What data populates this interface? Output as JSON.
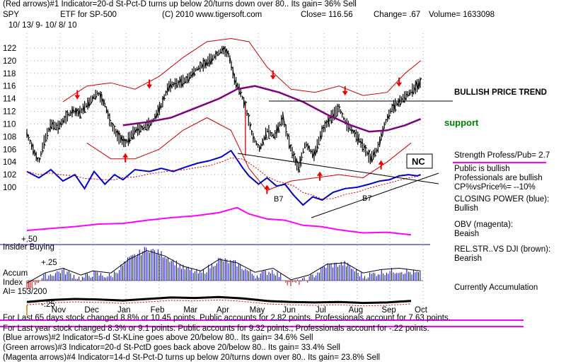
{
  "header": {
    "line1": "(Red arrows)#1 Indicator=20-d St-Pct-D turns up below 20/turns down over 80.. Its gain= 36% Sell",
    "symbol": "SPY",
    "etf": "ETF for SP-500",
    "copyright": "(C) 2010 www.tigersoft.com",
    "close": "Close=  116.56",
    "change": "Change= .67",
    "volume": "Volume= 1633098",
    "date_range": "10/ 13/ 9- 10/ 8/ 10"
  },
  "right_panel": {
    "bullish_trend": "BULLISH PRICE TREND",
    "support": "support",
    "nc": "NC",
    "strength": "Strength Profess/Pub= 2.7",
    "public_bullish": "Public is bullish",
    "pros_bullish": "Professionals are bullish",
    "cp_vs_price": "CP%vsPrice%= --10%",
    "closing_power_label": "CLOSING POWER (blue):",
    "closing_power_value": "Bullish",
    "obv_label": "OBV (magenta):",
    "obv_value": "Beaish",
    "relstr_label": "REL.STR..VS DJI (brown):",
    "relstr_value": "Bearish",
    "accumulation": "Currently Accumulation"
  },
  "lower_panel": {
    "insider_buying": "Insider Buying",
    "plus50": "+.50",
    "plus25": "+.25",
    "accum": "Accum",
    "index": "Index",
    "ai": "AI= 153/200",
    "minus25": "-.25"
  },
  "annotations": {
    "b7_left": "B7",
    "b7_right": "B7"
  },
  "footer": {
    "line1": "For Last 65 days stock changed  8.8% or  10.45 points.  Public accounts for  2.82 points.  Professionals account for  7.63 points.",
    "line2": "For Last year stock changed  8.3% or  9.1 points:  Public accounts for  9.32 points.;  Professionals account for -.22 points.",
    "line3": "(Blue arrows)#2 Indicator=5-d St-KLine goes above 20/below 80.. Its gain= 34.6% Sell",
    "line4": "(Green arrows)#3 Indicator=20-d St-PctD goes back above 20/below 80.. Its gain= 33.4% Sell",
    "line5": "(Magenta arrows)#4 Indicator=14-d St-Pct-D turns up below 20/turns down over 80.. Its gain= 23.8% Sell"
  },
  "colors": {
    "price_bars": "#000000",
    "bands": "#cc0000",
    "moving_average": "#800080",
    "closing_power": "#0000cc",
    "obv": "#ff00ff",
    "relative_strength": "#8b4513",
    "support": "#008000",
    "accum_bars": "#0000cc",
    "accum_negative": "#cc0000"
  },
  "chart_data": {
    "type": "line",
    "ticker": "SPY",
    "y_ticks": [
      100,
      102,
      104,
      106,
      108,
      110,
      112,
      114,
      116,
      118,
      120,
      122
    ],
    "ylim": [
      99,
      123
    ],
    "months": [
      "Nov",
      "Dec",
      "Jan",
      "Feb",
      "Mar",
      "Apr",
      "May",
      "Jun",
      "Jul",
      "Aug",
      "Sep",
      "Oct"
    ],
    "price_series": [
      {
        "t": 0,
        "v": 108.5
      },
      {
        "t": 0.5,
        "v": 106
      },
      {
        "t": 1.0,
        "v": 104
      },
      {
        "t": 1.4,
        "v": 107
      },
      {
        "t": 2.0,
        "v": 110
      },
      {
        "t": 2.6,
        "v": 109.5
      },
      {
        "t": 3.2,
        "v": 111
      },
      {
        "t": 3.8,
        "v": 112
      },
      {
        "t": 4.4,
        "v": 111.8
      },
      {
        "t": 5.2,
        "v": 113.5
      },
      {
        "t": 5.9,
        "v": 115
      },
      {
        "t": 6.5,
        "v": 113
      },
      {
        "t": 7.0,
        "v": 110
      },
      {
        "t": 7.6,
        "v": 108
      },
      {
        "t": 8.2,
        "v": 107
      },
      {
        "t": 9.0,
        "v": 109
      },
      {
        "t": 9.8,
        "v": 109.5
      },
      {
        "t": 10.5,
        "v": 110.5
      },
      {
        "t": 11.2,
        "v": 113
      },
      {
        "t": 11.8,
        "v": 116
      },
      {
        "t": 12.6,
        "v": 116.5
      },
      {
        "t": 13.3,
        "v": 117
      },
      {
        "t": 14.0,
        "v": 118.5
      },
      {
        "t": 14.8,
        "v": 119.5
      },
      {
        "t": 15.5,
        "v": 120.5
      },
      {
        "t": 16.3,
        "v": 121.8
      },
      {
        "t": 16.8,
        "v": 121
      },
      {
        "t": 17.3,
        "v": 117
      },
      {
        "t": 17.8,
        "v": 115
      },
      {
        "t": 18.3,
        "v": 112
      },
      {
        "t": 18.8,
        "v": 108
      },
      {
        "t": 19.4,
        "v": 106
      },
      {
        "t": 20.0,
        "v": 109
      },
      {
        "t": 20.6,
        "v": 108
      },
      {
        "t": 21.3,
        "v": 111
      },
      {
        "t": 22.0,
        "v": 106
      },
      {
        "t": 22.6,
        "v": 103
      },
      {
        "t": 23.2,
        "v": 107
      },
      {
        "t": 23.9,
        "v": 105
      },
      {
        "t": 24.6,
        "v": 109
      },
      {
        "t": 25.3,
        "v": 111
      },
      {
        "t": 26.0,
        "v": 112.5
      },
      {
        "t": 26.6,
        "v": 110
      },
      {
        "t": 27.3,
        "v": 108.5
      },
      {
        "t": 28.0,
        "v": 106.5
      },
      {
        "t": 28.6,
        "v": 104.5
      },
      {
        "t": 29.2,
        "v": 106
      },
      {
        "t": 29.8,
        "v": 110
      },
      {
        "t": 30.4,
        "v": 112.5
      },
      {
        "t": 31.0,
        "v": 113.5
      },
      {
        "t": 31.6,
        "v": 114.5
      },
      {
        "t": 32.2,
        "v": 115.5
      },
      {
        "t": 32.8,
        "v": 116.6
      }
    ],
    "closing_power_series": [
      {
        "t": 0,
        "v": 102.5
      },
      {
        "t": 1.0,
        "v": 101.5
      },
      {
        "t": 2.0,
        "v": 102.8
      },
      {
        "t": 3.0,
        "v": 101
      },
      {
        "t": 4.0,
        "v": 102
      },
      {
        "t": 4.8,
        "v": 99.8
      },
      {
        "t": 5.6,
        "v": 102.5
      },
      {
        "t": 6.5,
        "v": 100.5
      },
      {
        "t": 7.3,
        "v": 102
      },
      {
        "t": 8.0,
        "v": 101.2
      },
      {
        "t": 9.0,
        "v": 102.8
      },
      {
        "t": 10.2,
        "v": 102.5
      },
      {
        "t": 11.2,
        "v": 103
      },
      {
        "t": 12.2,
        "v": 102.5
      },
      {
        "t": 13.2,
        "v": 103.2
      },
      {
        "t": 14.2,
        "v": 103.8
      },
      {
        "t": 15.2,
        "v": 104.2
      },
      {
        "t": 16.2,
        "v": 104.8
      },
      {
        "t": 17.0,
        "v": 105.8
      },
      {
        "t": 18.0,
        "v": 103
      },
      {
        "t": 18.5,
        "v": 101.8
      },
      {
        "t": 19.3,
        "v": 100.5
      },
      {
        "t": 20.0,
        "v": 101.5
      },
      {
        "t": 20.8,
        "v": 100.2
      },
      {
        "t": 21.5,
        "v": 100.5
      },
      {
        "t": 22.2,
        "v": 98.8
      },
      {
        "t": 23.0,
        "v": 97.2
      },
      {
        "t": 23.8,
        "v": 98.5
      },
      {
        "t": 24.6,
        "v": 98
      },
      {
        "t": 25.5,
        "v": 99.2
      },
      {
        "t": 26.5,
        "v": 99.8
      },
      {
        "t": 27.5,
        "v": 100
      },
      {
        "t": 28.5,
        "v": 100.5
      },
      {
        "t": 29.4,
        "v": 101
      },
      {
        "t": 30.2,
        "v": 101.2
      },
      {
        "t": 31.0,
        "v": 101.8
      },
      {
        "t": 31.8,
        "v": 102
      },
      {
        "t": 32.5,
        "v": 101.8
      },
      {
        "t": 32.8,
        "v": 102
      }
    ],
    "moving_average_series": [
      {
        "t": 8.0,
        "v": 109.8
      },
      {
        "t": 10.0,
        "v": 110.3
      },
      {
        "t": 12.0,
        "v": 111
      },
      {
        "t": 14.0,
        "v": 112.5
      },
      {
        "t": 16.0,
        "v": 114
      },
      {
        "t": 17.5,
        "v": 115.5
      },
      {
        "t": 19.0,
        "v": 116
      },
      {
        "t": 21.0,
        "v": 115
      },
      {
        "t": 23.0,
        "v": 113.5
      },
      {
        "t": 25.0,
        "v": 111.5
      },
      {
        "t": 27.0,
        "v": 109.8
      },
      {
        "t": 28.5,
        "v": 108.8
      },
      {
        "t": 30.0,
        "v": 109
      },
      {
        "t": 31.5,
        "v": 109.8
      },
      {
        "t": 32.8,
        "v": 110.8
      }
    ],
    "upper_band_series": [
      {
        "t": 3.0,
        "v": 113.5
      },
      {
        "t": 5.0,
        "v": 116
      },
      {
        "t": 7.0,
        "v": 116.5
      },
      {
        "t": 9.0,
        "v": 115.5
      },
      {
        "t": 11.0,
        "v": 117.5
      },
      {
        "t": 13.0,
        "v": 120.5
      },
      {
        "t": 15.0,
        "v": 123
      },
      {
        "t": 17.0,
        "v": 123.5
      },
      {
        "t": 18.5,
        "v": 123
      },
      {
        "t": 20.0,
        "v": 119
      },
      {
        "t": 22.0,
        "v": 115.5
      },
      {
        "t": 24.0,
        "v": 115
      },
      {
        "t": 26.0,
        "v": 116
      },
      {
        "t": 28.0,
        "v": 114.5
      },
      {
        "t": 30.0,
        "v": 115
      },
      {
        "t": 31.5,
        "v": 118
      },
      {
        "t": 32.8,
        "v": 120
      }
    ],
    "lower_band_series": [
      {
        "t": 5.0,
        "v": 107
      },
      {
        "t": 7.0,
        "v": 104.5
      },
      {
        "t": 9.0,
        "v": 104.5
      },
      {
        "t": 11.0,
        "v": 106
      },
      {
        "t": 13.0,
        "v": 109
      },
      {
        "t": 15.0,
        "v": 111
      },
      {
        "t": 17.0,
        "v": 109
      },
      {
        "t": 18.5,
        "v": 103
      },
      {
        "t": 20.0,
        "v": 99.5
      },
      {
        "t": 22.0,
        "v": 101
      },
      {
        "t": 24.0,
        "v": 101.5
      },
      {
        "t": 26.0,
        "v": 102
      },
      {
        "t": 28.0,
        "v": 101.5
      },
      {
        "t": 30.0,
        "v": 104
      },
      {
        "t": 32.0,
        "v": 107
      }
    ],
    "obv_series": [
      {
        "t": 0,
        "v": 93.2
      },
      {
        "t": 2.0,
        "v": 93.5
      },
      {
        "t": 4.0,
        "v": 93.8
      },
      {
        "t": 6.0,
        "v": 94.2
      },
      {
        "t": 8.0,
        "v": 94.3
      },
      {
        "t": 10.0,
        "v": 94.8
      },
      {
        "t": 12.0,
        "v": 95.2
      },
      {
        "t": 14.0,
        "v": 95.5
      },
      {
        "t": 16.0,
        "v": 96
      },
      {
        "t": 17.5,
        "v": 96.8
      },
      {
        "t": 18.5,
        "v": 95.8
      },
      {
        "t": 20.0,
        "v": 95
      },
      {
        "t": 21.5,
        "v": 94.8
      },
      {
        "t": 23.0,
        "v": 94
      },
      {
        "t": 24.5,
        "v": 93.8
      },
      {
        "t": 26.0,
        "v": 93.3
      },
      {
        "t": 28.0,
        "v": 92.8
      },
      {
        "t": 30.0,
        "v": 92.9
      },
      {
        "t": 32.0,
        "v": 92.5
      }
    ],
    "accum_index_series": [
      {
        "t": 0,
        "v": -0.1
      },
      {
        "t": 1.5,
        "v": 0.05
      },
      {
        "t": 3.0,
        "v": 0.12
      },
      {
        "t": 4.5,
        "v": 0.02
      },
      {
        "t": 5.5,
        "v": 0.08
      },
      {
        "t": 7.0,
        "v": 0.05
      },
      {
        "t": 8.5,
        "v": 0.25
      },
      {
        "t": 10.0,
        "v": 0.38
      },
      {
        "t": 11.5,
        "v": 0.3
      },
      {
        "t": 13.0,
        "v": 0.15
      },
      {
        "t": 14.5,
        "v": 0.08
      },
      {
        "t": 16.0,
        "v": 0.25
      },
      {
        "t": 17.5,
        "v": 0.2
      },
      {
        "t": 19.0,
        "v": 0.06
      },
      {
        "t": 20.5,
        "v": 0.12
      },
      {
        "t": 22.0,
        "v": -0.05
      },
      {
        "t": 23.5,
        "v": 0.02
      },
      {
        "t": 25.0,
        "v": 0.18
      },
      {
        "t": 26.5,
        "v": 0.2
      },
      {
        "t": 28.0,
        "v": 0.05
      },
      {
        "t": 29.5,
        "v": 0.1
      },
      {
        "t": 31.0,
        "v": 0.12
      },
      {
        "t": 32.8,
        "v": 0.08
      }
    ],
    "relative_strength_series": [
      {
        "t": 0,
        "v": 0.2
      },
      {
        "t": 2.0,
        "v": 0.4
      },
      {
        "t": 4.0,
        "v": 0.5
      },
      {
        "t": 6.0,
        "v": 0.45
      },
      {
        "t": 8.0,
        "v": 0.35
      },
      {
        "t": 10.0,
        "v": 0.5
      },
      {
        "t": 12.0,
        "v": 0.65
      },
      {
        "t": 14.0,
        "v": 0.6
      },
      {
        "t": 16.0,
        "v": 0.7
      },
      {
        "t": 18.0,
        "v": 0.55
      },
      {
        "t": 20.0,
        "v": 0.3
      },
      {
        "t": 22.0,
        "v": 0.2
      },
      {
        "t": 24.0,
        "v": 0.15
      },
      {
        "t": 26.0,
        "v": 0.2
      },
      {
        "t": 28.0,
        "v": 0.1
      },
      {
        "t": 30.0,
        "v": 0.15
      },
      {
        "t": 32.0,
        "v": 0.3
      }
    ],
    "red_arrows_down_t": [
      4.2,
      10.2,
      20.5,
      26.5,
      31.0
    ],
    "red_arrows_up_t": [
      8.2,
      20.0,
      24.4,
      29.5
    ],
    "bullish_trend_level": 113.4,
    "support_level": 110.5
  }
}
